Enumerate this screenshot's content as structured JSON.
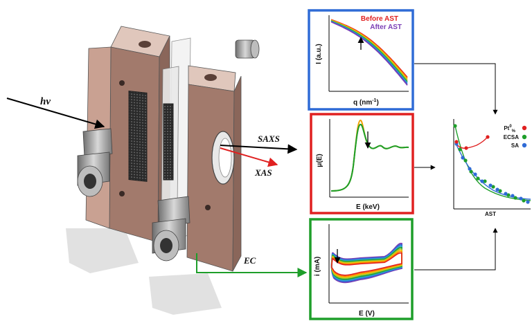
{
  "cell": {
    "beam_label": "hν",
    "saxs_label": "SAXS",
    "xas_label": "XAS",
    "ec_label": "EC"
  },
  "saxs_panel": {
    "ylabel": "I (a.u.)",
    "xlabel_main": "q (nm",
    "xlabel_exp": "-1",
    "xlabel_close": ")",
    "legend_before": "Before AST",
    "legend_after": "After AST",
    "border_color": "#2f6bd6"
  },
  "xas_panel": {
    "ylabel": "μ(E)",
    "xlabel": "E (keV)",
    "border_color": "#e02020"
  },
  "ec_panel": {
    "ylabel": "i (mA)",
    "xlabel": "E (V)",
    "border_color": "#1e9e2a"
  },
  "summary_panel": {
    "xlabel": "AST",
    "legend": [
      {
        "label_main": "Pt",
        "label_sup": "0",
        "label_sub": "%",
        "color": "#e02020"
      },
      {
        "label_main": "ECSA",
        "label_sup": "",
        "label_sub": "",
        "color": "#1e9e2a"
      },
      {
        "label_main": "SA",
        "label_sup": "",
        "label_sub": "",
        "color": "#2f6bd6"
      }
    ]
  },
  "colors": {
    "frame_front": "#c9a192",
    "frame_side": "#a27a6c",
    "frame_top": "#e0c7bc",
    "metal": "#9a9a9a",
    "arrow_black": "#000000",
    "arrow_red": "#e02020",
    "arrow_green": "#1e9e2a"
  }
}
